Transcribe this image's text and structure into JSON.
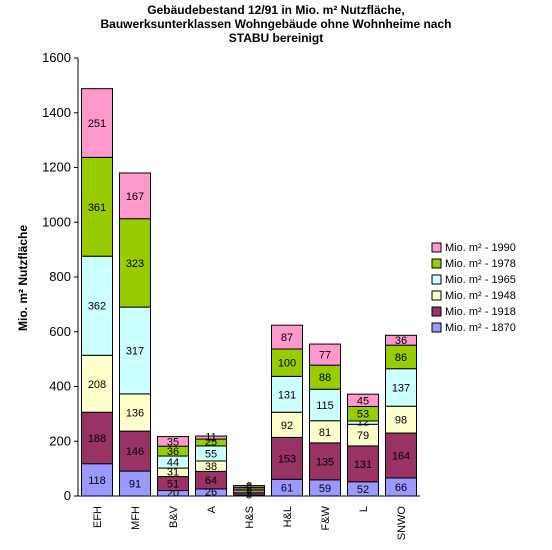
{
  "chart_data": {
    "type": "stacked-bar",
    "title": [
      "Gebäudebestand 12/91 in Mio. m² Nutzfläche,",
      "Bauwerksunterklassen Wohngebäude ohne Wohnheime nach",
      "STABU bereinigt"
    ],
    "ylabel": "Mio. m² Nutzfläche",
    "ylim": [
      0,
      1600
    ],
    "yticks": [
      0,
      200,
      400,
      600,
      800,
      1000,
      1200,
      1400,
      1600
    ],
    "categories": [
      "EFH",
      "MFH",
      "B&V",
      "A",
      "H&S",
      "H&L",
      "F&W",
      "L",
      "SNWO"
    ],
    "series": [
      {
        "name": "Mio. m²  - 1870",
        "color": "#9999ff",
        "values": [
          118,
          91,
          20,
          26,
          3,
          61,
          59,
          52,
          66
        ]
      },
      {
        "name": "Mio. m²  - 1918",
        "color": "#993366",
        "values": [
          188,
          146,
          51,
          64,
          9,
          153,
          135,
          131,
          164
        ]
      },
      {
        "name": "Mio. m²  - 1948",
        "color": "#ffffcc",
        "values": [
          208,
          136,
          31,
          38,
          7,
          92,
          81,
          79,
          98
        ]
      },
      {
        "name": "Mio. m²  - 1965",
        "color": "#ccffff",
        "values": [
          362,
          317,
          44,
          55,
          6,
          131,
          115,
          12,
          137
        ]
      },
      {
        "name": "Mio. m²  - 1978",
        "color": "#99cc00",
        "values": [
          361,
          323,
          36,
          25,
          7,
          100,
          88,
          53,
          86
        ]
      },
      {
        "name": "Mio. m²  - 1990",
        "color": "#ff99cc",
        "values": [
          251,
          167,
          35,
          11,
          6,
          87,
          77,
          45,
          36
        ]
      }
    ],
    "legend_position": "right",
    "grid": false
  }
}
